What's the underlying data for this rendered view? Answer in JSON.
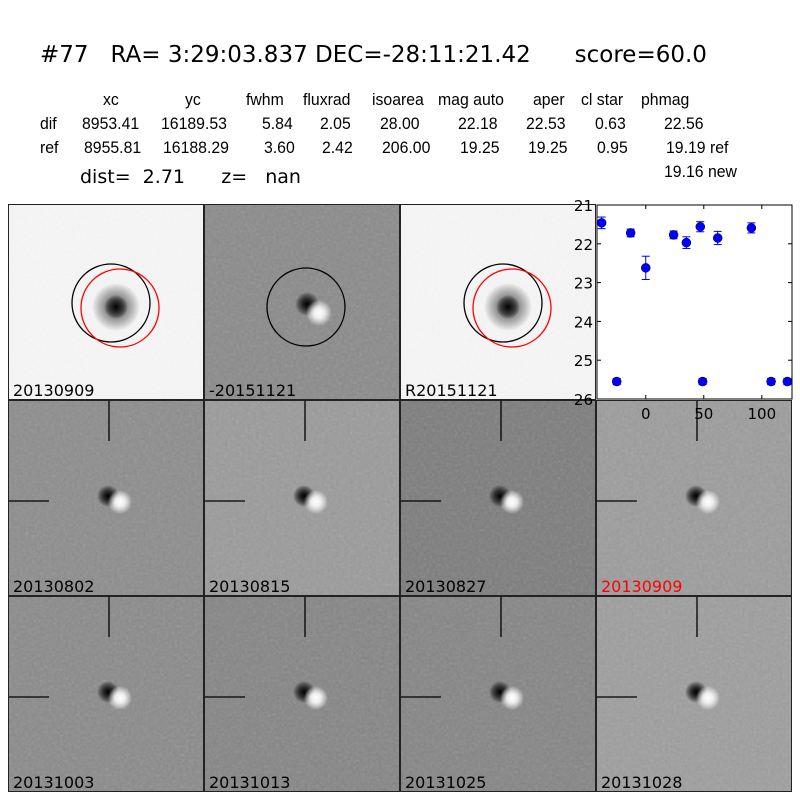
{
  "title": "#77   RA= 3:29:03.837 DEC=-28:11:21.42      score=60.0",
  "table": {
    "headers": [
      "xc",
      "yc",
      "fwhm",
      "fluxrad",
      "isoarea",
      "mag auto",
      "aper",
      "cl star",
      "phmag"
    ],
    "rows": [
      {
        "label": "dif",
        "values": [
          "8953.41",
          "16189.53",
          "5.84",
          "2.05",
          "28.00",
          "22.18",
          "22.53",
          "0.63",
          "22.56"
        ]
      },
      {
        "label": "ref",
        "values": [
          "8955.81",
          "16188.29",
          "3.60",
          "2.42",
          "206.00",
          "19.25",
          "19.25",
          "0.95",
          "19.19 ref"
        ]
      }
    ],
    "extra": "19.16 new"
  },
  "dist_line": "dist=  2.71      z=   nan",
  "panels": [
    {
      "label": "20130909",
      "label_color": "#000000",
      "kind": "image",
      "bg": "#f5f5f5"
    },
    {
      "label": "-20151121",
      "label_color": "#000000",
      "kind": "diff",
      "bg": "#8a8a8a"
    },
    {
      "label": "R20151121",
      "label_color": "#000000",
      "kind": "image",
      "bg": "#f5f5f5"
    },
    {
      "label": "20130802",
      "label_color": "#000000",
      "kind": "cut",
      "bg": "#8c8c8c"
    },
    {
      "label": "20130815",
      "label_color": "#000000",
      "kind": "cut",
      "bg": "#9a9a9a"
    },
    {
      "label": "20130827",
      "label_color": "#000000",
      "kind": "cut",
      "bg": "#7c7c7c"
    },
    {
      "label": "20130909",
      "label_color": "#ff0000",
      "kind": "cut",
      "bg": "#9c9c9c"
    },
    {
      "label": "20131003",
      "label_color": "#000000",
      "kind": "cut",
      "bg": "#8a8a8a"
    },
    {
      "label": "20131013",
      "label_color": "#000000",
      "kind": "cut",
      "bg": "#858585"
    },
    {
      "label": "20131025",
      "label_color": "#000000",
      "kind": "cut",
      "bg": "#858585"
    },
    {
      "label": "20131028",
      "label_color": "#000000",
      "kind": "cut",
      "bg": "#9e9e9e"
    }
  ],
  "chart_data": {
    "type": "scatter",
    "xlim": [
      -42,
      126
    ],
    "ylim": [
      26,
      21
    ],
    "y_inverted": true,
    "xticks": [
      "0",
      "50",
      "100"
    ],
    "xtick_values": [
      0,
      50,
      100
    ],
    "yticks": [
      "21",
      "22",
      "23",
      "24",
      "25",
      "26"
    ],
    "ytick_values": [
      21,
      22,
      23,
      24,
      25,
      26
    ],
    "marker_color": "#0000ff",
    "points": [
      {
        "x": -38,
        "y": 21.46,
        "err": 0.15
      },
      {
        "x": -25,
        "y": 25.55,
        "err": 0.08
      },
      {
        "x": -13,
        "y": 21.72,
        "err": 0.1
      },
      {
        "x": 0,
        "y": 22.62,
        "err": 0.3
      },
      {
        "x": 24,
        "y": 21.77,
        "err": 0.1
      },
      {
        "x": 35,
        "y": 21.97,
        "err": 0.15
      },
      {
        "x": 47,
        "y": 21.56,
        "err": 0.13
      },
      {
        "x": 49,
        "y": 25.55,
        "err": 0.08
      },
      {
        "x": 62,
        "y": 21.85,
        "err": 0.17
      },
      {
        "x": 91,
        "y": 21.59,
        "err": 0.13
      },
      {
        "x": 108,
        "y": 25.55,
        "err": 0.08
      },
      {
        "x": 122,
        "y": 25.55,
        "err": 0.08
      }
    ]
  }
}
